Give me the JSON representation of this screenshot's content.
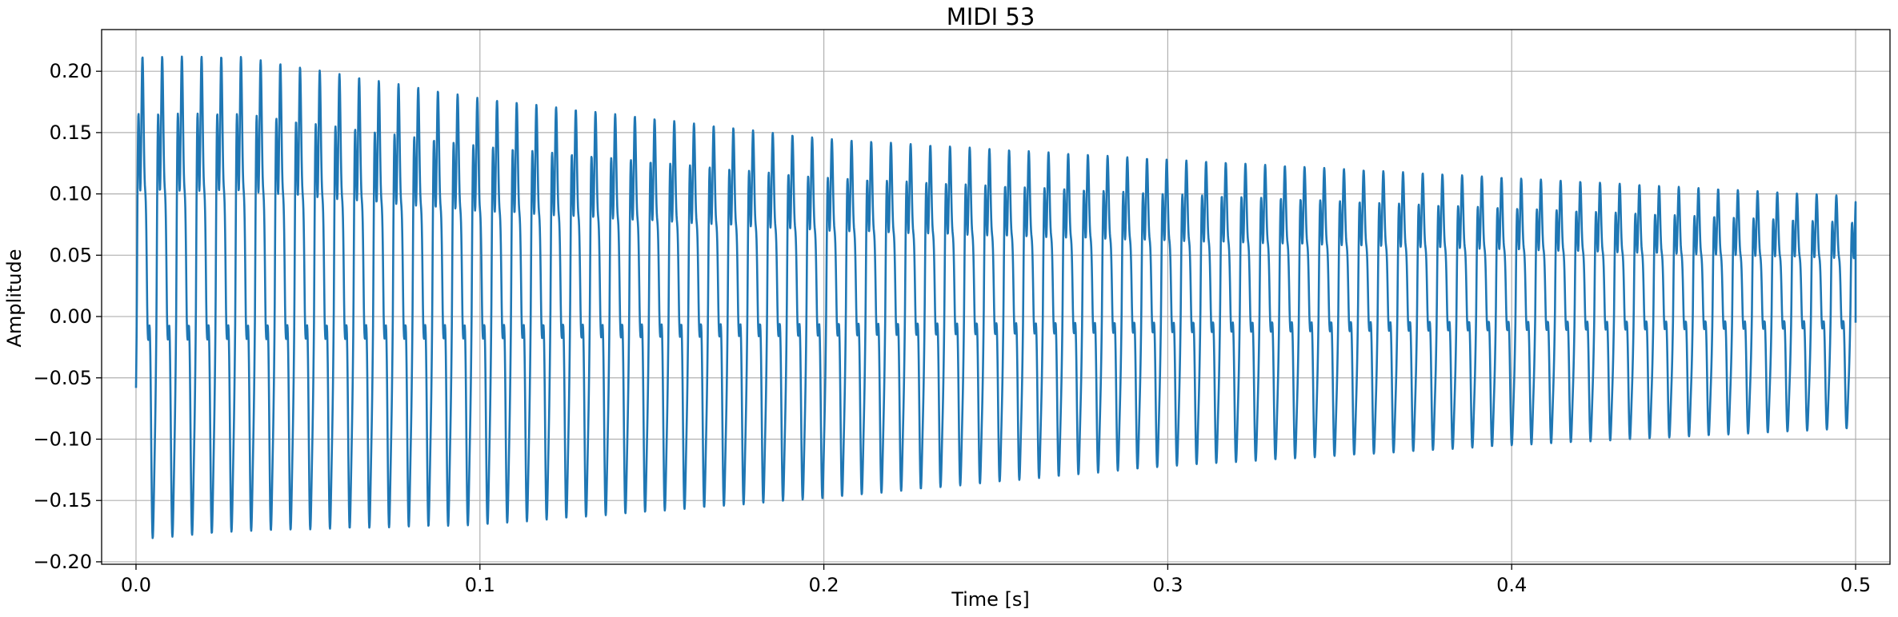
{
  "chart_data": {
    "type": "line",
    "title": "MIDI 53",
    "xlabel": "Time [s]",
    "ylabel": "Amplitude",
    "xlim": [
      -0.01,
      0.51
    ],
    "ylim": [
      -0.202,
      0.234
    ],
    "xticks": [
      0.0,
      0.1,
      0.2,
      0.3,
      0.4,
      0.5
    ],
    "xtick_labels": [
      "0.0",
      "0.1",
      "0.2",
      "0.3",
      "0.4",
      "0.5"
    ],
    "yticks": [
      -0.2,
      -0.15,
      -0.1,
      -0.05,
      0.0,
      0.05,
      0.1,
      0.15,
      0.2
    ],
    "ytick_labels": [
      "−0.20",
      "−0.15",
      "−0.10",
      "−0.05",
      "0.00",
      "0.05",
      "0.10",
      "0.15",
      "0.20"
    ],
    "grid": true,
    "line_color": "#1f77b4",
    "series": [
      {
        "period_s": 0.005727,
        "envelope": {
          "t": [
            0.0,
            0.03,
            0.1,
            0.2,
            0.3,
            0.4,
            0.5
          ],
          "peak_max": [
            0.212,
            0.212,
            0.178,
            0.145,
            0.128,
            0.113,
            0.098
          ],
          "peak_min": [
            -0.182,
            -0.175,
            -0.17,
            -0.148,
            -0.122,
            -0.105,
            -0.091
          ]
        },
        "end_t": 0.5,
        "end_value": -0.005
      }
    ]
  }
}
